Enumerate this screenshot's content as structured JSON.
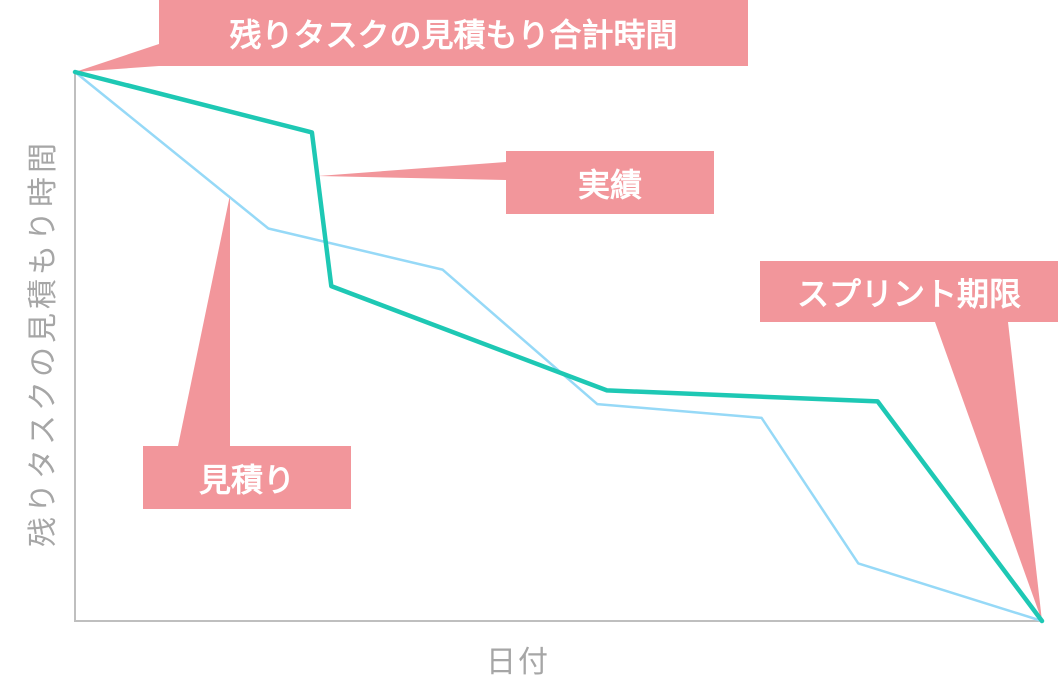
{
  "colors": {
    "callout": "#f2969b",
    "actual_line": "#1ec8b4",
    "estimate_line": "#96d9f7",
    "axis": "#bfbfbf",
    "axis_text": "#a6a6a6"
  },
  "chart_data": {
    "type": "line",
    "title": "",
    "xlabel": "日付",
    "ylabel": "残りタスクの見積もり時間",
    "grid": false,
    "legend": "none",
    "xlim": [
      0,
      10
    ],
    "ylim": [
      0,
      100
    ],
    "series": [
      {
        "key": "estimate",
        "x": [
          0,
          2,
          3.8,
          5.4,
          7.1,
          8.1,
          10
        ],
        "y": [
          100,
          71.5,
          64,
          39.5,
          37,
          10.5,
          0
        ]
      },
      {
        "key": "actual",
        "x": [
          0,
          2.45,
          2.65,
          5.5,
          8.3,
          10
        ],
        "y": [
          100,
          89,
          61,
          42,
          40,
          0
        ]
      }
    ]
  },
  "callouts": {
    "total_estimate": "残りタスクの見積もり合計時間",
    "actual": "実績",
    "estimate": "見積り",
    "sprint_deadline": "スプリント期限"
  }
}
